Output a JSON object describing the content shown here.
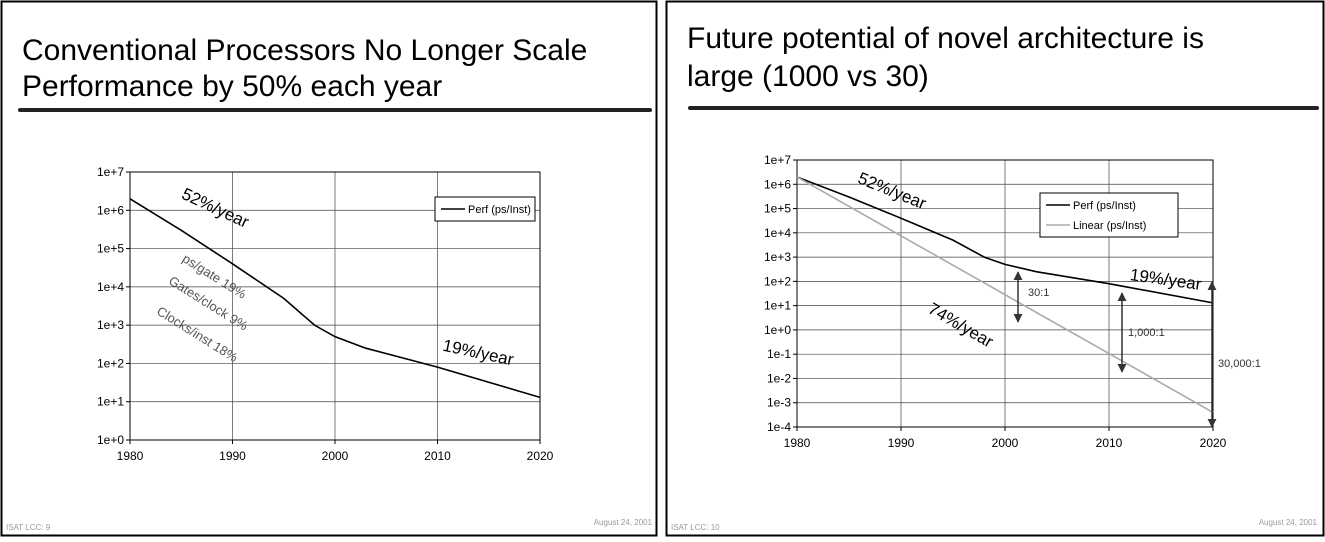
{
  "slides": [
    {
      "footer_left": "ISAT LCC: 9",
      "footer_right": "August 24, 2001"
    },
    {
      "footer_left": "ISAT LCC: 10",
      "footer_right": "August 24, 2001"
    }
  ],
  "chart_data": [
    {
      "type": "line",
      "title": [
        "Conventional Processors No Longer Scale",
        "Performance by 50% each year"
      ],
      "x": [
        1980,
        1985,
        1990,
        1995,
        1998,
        2000,
        2003,
        2010,
        2020
      ],
      "series": [
        {
          "name": "Perf (ps/Inst)",
          "color": "#000000",
          "values": [
            2000000,
            300000,
            40000,
            5000,
            1000,
            500,
            250,
            80,
            13
          ]
        }
      ],
      "xlim": [
        1980,
        2020
      ],
      "xticks": [
        1980,
        1990,
        2000,
        2010,
        2020
      ],
      "ylim": [
        1,
        10000000
      ],
      "log_y": true,
      "grid": true,
      "legend": "upper right",
      "yticks": [
        {
          "value": 1,
          "label": "1e+0"
        },
        {
          "value": 10,
          "label": "1e+1"
        },
        {
          "value": 100,
          "label": "1e+2"
        },
        {
          "value": 1000,
          "label": "1e+3"
        },
        {
          "value": 10000,
          "label": "1e+4"
        },
        {
          "value": 100000,
          "label": "1e+5"
        },
        {
          "value": 1000000,
          "label": "1e+6"
        },
        {
          "value": 10000000,
          "label": "1e+7"
        }
      ],
      "annotations": [
        "52%/year",
        "ps/gate 19%",
        "Gates/clock 9%",
        "Clocks/inst 18%",
        "19%/year"
      ]
    },
    {
      "type": "line",
      "title": [
        "Future potential of novel architecture is",
        "large (1000 vs 30)"
      ],
      "x": [
        1980,
        1985,
        1990,
        1995,
        1998,
        2000,
        2003,
        2010,
        2020
      ],
      "series": [
        {
          "name": "Perf (ps/Inst)",
          "color": "#000000",
          "values": [
            2000000,
            300000,
            40000,
            5000,
            1000,
            500,
            250,
            80,
            13
          ]
        },
        {
          "name": "Linear (ps/Inst)",
          "color": "#aaaaaa",
          "values": [
            2000000,
            null,
            null,
            null,
            null,
            null,
            null,
            null,
            0.0004
          ]
        }
      ],
      "xlim": [
        1980,
        2020
      ],
      "xticks": [
        1980,
        1990,
        2000,
        2010,
        2020
      ],
      "ylim": [
        0.0001,
        10000000
      ],
      "log_y": true,
      "grid": true,
      "legend": "upper right",
      "yticks": [
        {
          "value": 0.0001,
          "label": "1e-4"
        },
        {
          "value": 0.001,
          "label": "1e-3"
        },
        {
          "value": 0.01,
          "label": "1e-2"
        },
        {
          "value": 0.1,
          "label": "1e-1"
        },
        {
          "value": 1,
          "label": "1e+0"
        },
        {
          "value": 10,
          "label": "1e+1"
        },
        {
          "value": 100,
          "label": "1e+2"
        },
        {
          "value": 1000,
          "label": "1e+3"
        },
        {
          "value": 10000,
          "label": "1e+4"
        },
        {
          "value": 100000,
          "label": "1e+5"
        },
        {
          "value": 1000000,
          "label": "1e+6"
        },
        {
          "value": 10000000,
          "label": "1e+7"
        }
      ],
      "annotations": [
        "52%/year",
        "19%/year",
        "74%/year",
        "30:1",
        "1,000:1",
        "30,000:1"
      ]
    }
  ]
}
